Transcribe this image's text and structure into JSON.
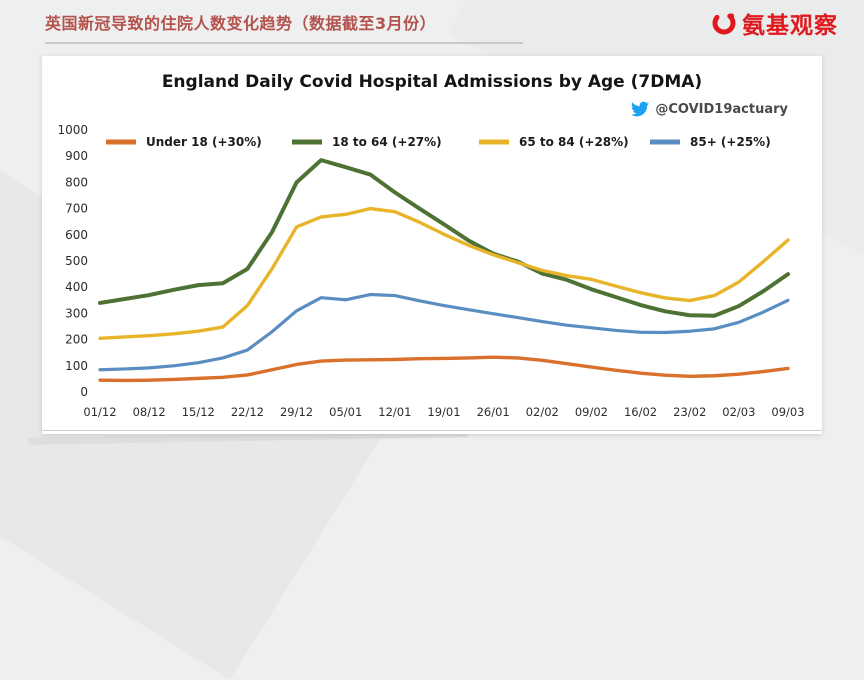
{
  "header": {
    "title": "英国新冠导致的住院人数变化趋势（数据截至3月份）",
    "brand": "氨基观察"
  },
  "chart_data": {
    "type": "line",
    "title": "England Daily Covid Hospital Admissions by Age (7DMA)",
    "twitter_handle": "@COVID19actuary",
    "grid": false,
    "legend_position": "top-inside",
    "ylim": [
      0,
      1000
    ],
    "y_ticks": [
      0,
      100,
      200,
      300,
      400,
      500,
      600,
      700,
      800,
      900,
      1000
    ],
    "x_ticks": [
      {
        "day": 0,
        "label": "01/12"
      },
      {
        "day": 7,
        "label": "08/12"
      },
      {
        "day": 14,
        "label": "15/12"
      },
      {
        "day": 21,
        "label": "22/12"
      },
      {
        "day": 28,
        "label": "29/12"
      },
      {
        "day": 35,
        "label": "05/01"
      },
      {
        "day": 42,
        "label": "12/01"
      },
      {
        "day": 49,
        "label": "19/01"
      },
      {
        "day": 56,
        "label": "26/01"
      },
      {
        "day": 63,
        "label": "02/02"
      },
      {
        "day": 70,
        "label": "09/02"
      },
      {
        "day": 77,
        "label": "16/02"
      },
      {
        "day": 84,
        "label": "23/02"
      },
      {
        "day": 91,
        "label": "02/03"
      },
      {
        "day": 98,
        "label": "09/03"
      }
    ],
    "x": [
      0,
      3.5,
      7,
      10.5,
      14,
      17.5,
      21,
      24.5,
      28,
      31.5,
      35,
      38.5,
      42,
      45.5,
      49,
      52.5,
      56,
      59.5,
      63,
      66.5,
      70,
      73.5,
      77,
      80.5,
      84,
      87.5,
      91,
      94.5,
      98
    ],
    "series": [
      {
        "name": "Under 18 (+30%)",
        "color": "#d9712c",
        "stroke_width": 3.4,
        "values": [
          45,
          44,
          45,
          48,
          52,
          56,
          65,
          85,
          105,
          118,
          122,
          123,
          124,
          127,
          128,
          130,
          133,
          130,
          121,
          108,
          95,
          83,
          72,
          64,
          60,
          62,
          68,
          78,
          90
        ]
      },
      {
        "name": "18 to 64 (+27%)",
        "color": "#4d7233",
        "stroke_width": 4,
        "values": [
          340,
          355,
          370,
          390,
          408,
          415,
          470,
          610,
          800,
          885,
          858,
          830,
          762,
          700,
          640,
          578,
          528,
          498,
          452,
          428,
          392,
          362,
          332,
          308,
          293,
          291,
          328,
          385,
          450
        ]
      },
      {
        "name": "65 to 84 (+28%)",
        "color": "#e8b42a",
        "stroke_width": 3.4,
        "values": [
          205,
          210,
          215,
          222,
          232,
          248,
          330,
          470,
          630,
          668,
          678,
          700,
          688,
          648,
          602,
          560,
          524,
          494,
          464,
          444,
          430,
          404,
          379,
          359,
          349,
          368,
          420,
          498,
          580
        ]
      },
      {
        "name": "85+ (+25%)",
        "color": "#5a8ec2",
        "stroke_width": 3.2,
        "values": [
          85,
          88,
          92,
          100,
          112,
          130,
          160,
          230,
          310,
          360,
          352,
          372,
          368,
          348,
          330,
          314,
          299,
          284,
          269,
          255,
          245,
          235,
          228,
          227,
          232,
          241,
          266,
          305,
          350
        ]
      }
    ]
  }
}
